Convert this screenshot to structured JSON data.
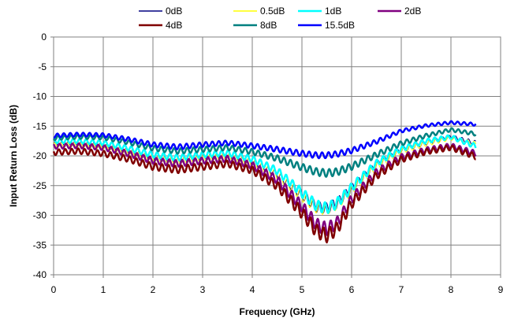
{
  "chart_data": {
    "type": "line",
    "xlabel": "Frequency (GHz)",
    "ylabel": "Input Return Loss (dB)",
    "xlim": [
      0,
      9
    ],
    "ylim": [
      -40,
      0
    ],
    "x_ticks": [
      "0",
      "1",
      "2",
      "3",
      "4",
      "5",
      "6",
      "7",
      "8",
      "9"
    ],
    "y_ticks": [
      "0",
      "-5",
      "-10",
      "-15",
      "-20",
      "-25",
      "-30",
      "-35",
      "-40"
    ],
    "grid": true,
    "legend_position": "top",
    "ripple_note": "curves show small periodic ripple of about 0.5-1.5 dB",
    "series": [
      {
        "name": "0dB",
        "color": "#000080",
        "width": 1.0,
        "x": [
          0,
          0.5,
          1,
          1.5,
          2,
          2.5,
          3,
          3.5,
          4,
          4.5,
          5,
          5.3,
          5.5,
          5.7,
          6,
          6.5,
          7,
          7.5,
          8,
          8.5
        ],
        "y": [
          -18.0,
          -18.0,
          -18.3,
          -19.2,
          -20.3,
          -20.8,
          -20.3,
          -20.0,
          -21.0,
          -23.0,
          -26.5,
          -28.6,
          -28.8,
          -28.0,
          -25.5,
          -21.5,
          -19.0,
          -17.8,
          -16.8,
          -17.8
        ]
      },
      {
        "name": "0.5dB",
        "color": "#ffff00",
        "width": 1.0,
        "x": [
          0,
          0.5,
          1,
          1.5,
          2,
          2.5,
          3,
          3.5,
          4,
          4.5,
          5,
          5.3,
          5.5,
          5.7,
          6,
          6.5,
          7,
          7.5,
          8,
          8.5
        ],
        "y": [
          -18.2,
          -18.2,
          -18.5,
          -19.4,
          -20.5,
          -21.0,
          -20.5,
          -20.2,
          -21.2,
          -23.2,
          -26.8,
          -28.8,
          -29.0,
          -28.2,
          -25.8,
          -21.8,
          -19.2,
          -18.0,
          -17.0,
          -18.0
        ]
      },
      {
        "name": "1dB",
        "color": "#00ffff",
        "width": 2.5,
        "x": [
          0,
          0.5,
          1,
          1.5,
          2,
          2.5,
          3,
          3.5,
          4,
          4.5,
          5,
          5.3,
          5.5,
          5.7,
          6,
          6.5,
          7,
          7.5,
          8,
          8.5
        ],
        "y": [
          -17.5,
          -17.5,
          -17.8,
          -18.7,
          -19.8,
          -20.3,
          -19.8,
          -19.5,
          -20.5,
          -22.5,
          -26.2,
          -28.4,
          -28.8,
          -28.0,
          -25.3,
          -21.2,
          -18.8,
          -17.5,
          -16.8,
          -18.4
        ]
      },
      {
        "name": "2dB",
        "color": "#800080",
        "width": 2.5,
        "x": [
          0,
          0.5,
          1,
          1.5,
          2,
          2.5,
          3,
          3.5,
          4,
          4.5,
          5,
          5.3,
          5.5,
          5.7,
          6,
          6.5,
          7,
          7.5,
          8,
          8.5
        ],
        "y": [
          -18.4,
          -18.3,
          -18.6,
          -19.6,
          -20.8,
          -21.3,
          -20.8,
          -20.5,
          -21.6,
          -24.0,
          -28.5,
          -31.6,
          -32.3,
          -31.4,
          -27.3,
          -22.8,
          -20.2,
          -19.0,
          -18.3,
          -19.6
        ]
      },
      {
        "name": "4dB",
        "color": "#800000",
        "width": 2.5,
        "x": [
          0,
          0.5,
          1,
          1.5,
          2,
          2.5,
          3,
          3.5,
          4,
          4.5,
          5,
          5.3,
          5.5,
          5.7,
          6,
          6.5,
          7,
          7.5,
          8,
          8.5
        ],
        "y": [
          -19.4,
          -19.2,
          -19.6,
          -20.5,
          -21.8,
          -22.3,
          -21.8,
          -21.3,
          -22.4,
          -25.0,
          -29.6,
          -32.7,
          -33.4,
          -32.3,
          -28.0,
          -23.3,
          -20.6,
          -19.3,
          -18.6,
          -20.1
        ]
      },
      {
        "name": "8dB",
        "color": "#008080",
        "width": 2.5,
        "x": [
          0,
          0.5,
          1,
          1.5,
          2,
          2.5,
          3,
          3.5,
          4,
          4.5,
          5,
          5.3,
          5.5,
          5.7,
          6,
          6.5,
          7,
          7.5,
          8,
          8.5
        ],
        "y": [
          -17.0,
          -16.8,
          -16.9,
          -17.7,
          -18.7,
          -19.2,
          -18.9,
          -18.6,
          -19.3,
          -20.4,
          -21.9,
          -22.7,
          -22.9,
          -22.7,
          -21.8,
          -19.8,
          -17.9,
          -16.6,
          -15.6,
          -16.3
        ]
      },
      {
        "name": "15.5dB",
        "color": "#0000ff",
        "width": 2.5,
        "x": [
          0,
          0.5,
          1,
          1.5,
          2,
          2.5,
          3,
          3.5,
          4,
          4.5,
          5,
          5.3,
          5.5,
          5.7,
          6,
          6.5,
          7,
          7.5,
          8,
          8.5
        ],
        "y": [
          -16.6,
          -16.4,
          -16.5,
          -17.2,
          -18.1,
          -18.5,
          -18.1,
          -17.8,
          -18.3,
          -18.9,
          -19.6,
          -19.9,
          -19.9,
          -19.7,
          -19.1,
          -17.6,
          -15.8,
          -14.9,
          -14.4,
          -14.7
        ]
      }
    ]
  }
}
